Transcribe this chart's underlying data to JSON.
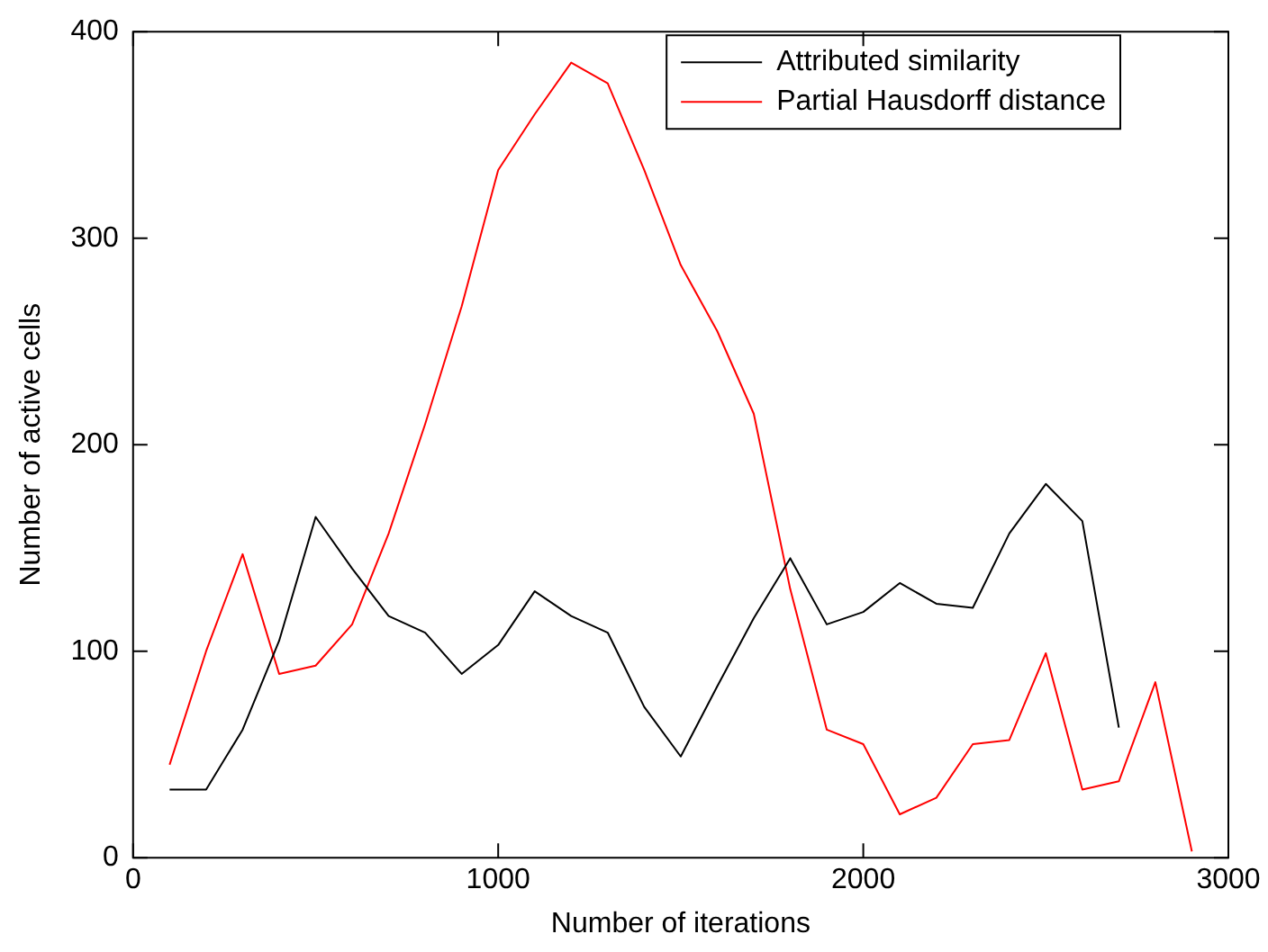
{
  "chart_data": {
    "type": "line",
    "xlabel": "Number of iterations",
    "ylabel": "Number of active cells",
    "xlim": [
      0,
      3000
    ],
    "xticks": [
      0,
      1000,
      2000,
      3000
    ],
    "ylim": [
      0,
      400
    ],
    "yticks": [
      0,
      100,
      200,
      300,
      400
    ],
    "grid": false,
    "legend": "top right",
    "marker": "none",
    "line_style": "solid",
    "series": [
      {
        "name": "Attributed similarity",
        "color": "#000000",
        "x": [
          100,
          200,
          300,
          400,
          500,
          600,
          700,
          800,
          900,
          1000,
          1100,
          1200,
          1300,
          1400,
          1500,
          1600,
          1700,
          1800,
          1900,
          2000,
          2100,
          2200,
          2300,
          2400,
          2500,
          2600,
          2700
        ],
        "values": [
          33,
          33,
          62,
          105,
          165,
          140,
          117,
          109,
          89,
          103,
          129,
          117,
          109,
          73,
          49,
          83,
          116,
          145,
          113,
          119,
          133,
          123,
          121,
          157,
          181,
          163,
          63
        ]
      },
      {
        "name": "Partial Hausdorff distance",
        "color": "#ff0000",
        "x": [
          100,
          200,
          300,
          400,
          500,
          600,
          700,
          800,
          900,
          1000,
          1100,
          1200,
          1300,
          1400,
          1500,
          1600,
          1700,
          1800,
          1900,
          2000,
          2100,
          2200,
          2300,
          2400,
          2500,
          2600,
          2700,
          2800,
          2900
        ],
        "values": [
          45,
          100,
          147,
          89,
          93,
          113,
          157,
          210,
          267,
          333,
          360,
          385,
          375,
          333,
          287,
          255,
          215,
          130,
          62,
          55,
          21,
          29,
          55,
          57,
          99,
          33,
          37,
          85,
          3
        ]
      }
    ]
  }
}
